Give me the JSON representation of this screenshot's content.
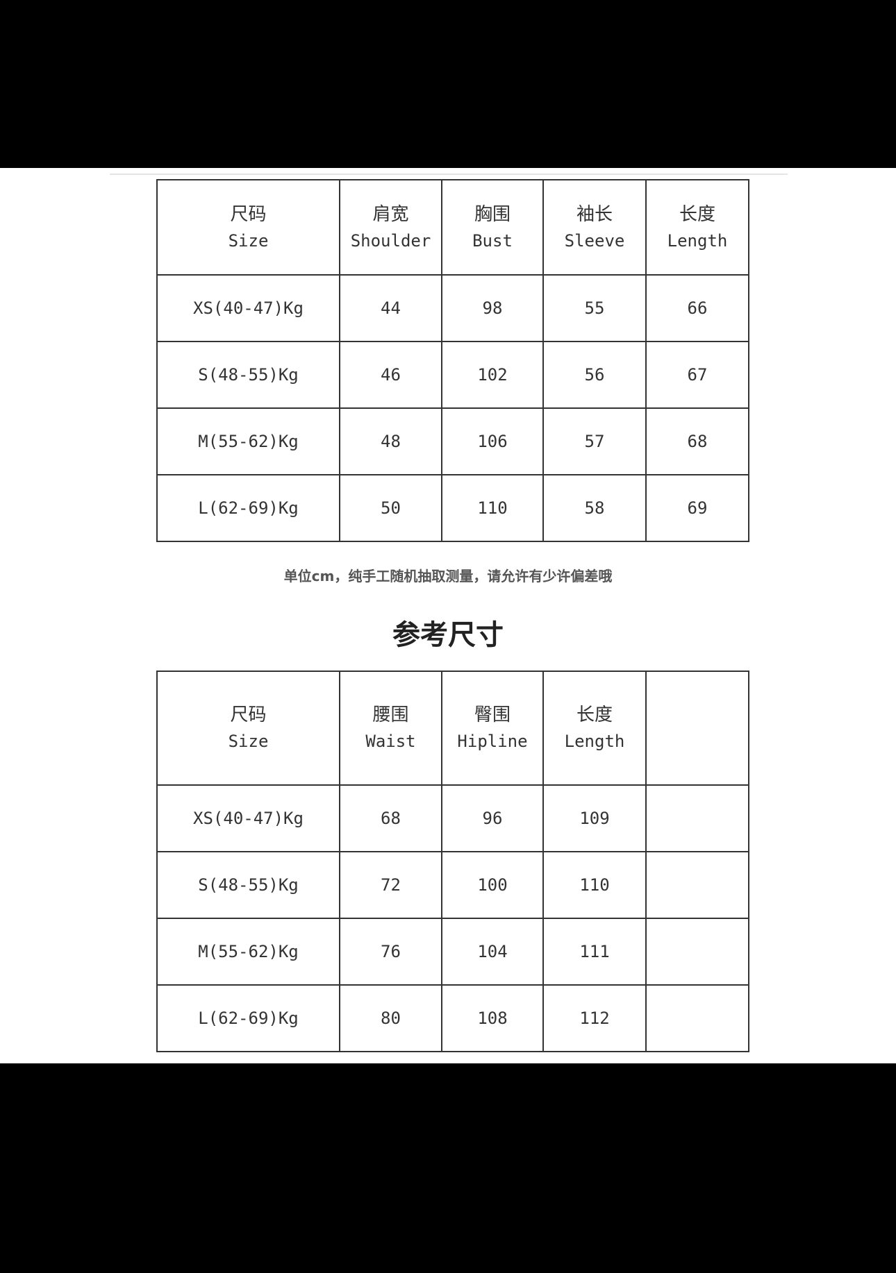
{
  "table1": {
    "headers": [
      {
        "zh": "尺码",
        "en": "Size"
      },
      {
        "zh": "肩宽",
        "en": "Shoulder"
      },
      {
        "zh": "胸围",
        "en": "Bust"
      },
      {
        "zh": "袖长",
        "en": "Sleeve"
      },
      {
        "zh": "长度",
        "en": "Length"
      }
    ],
    "rows": [
      [
        "XS(40-47)Kg",
        "44",
        "98",
        "55",
        "66"
      ],
      [
        "S(48-55)Kg",
        "46",
        "102",
        "56",
        "67"
      ],
      [
        "M(55-62)Kg",
        "48",
        "106",
        "57",
        "68"
      ],
      [
        "L(62-69)Kg",
        "50",
        "110",
        "58",
        "69"
      ]
    ]
  },
  "note": "单位cm，纯手工随机抽取测量，请允许有少许偏差哦",
  "title": "参考尺寸",
  "table2": {
    "headers": [
      {
        "zh": "尺码",
        "en": "Size"
      },
      {
        "zh": "腰围",
        "en": "Waist"
      },
      {
        "zh": "臀围",
        "en": "Hipline"
      },
      {
        "zh": "长度",
        "en": "Length"
      },
      {
        "zh": "",
        "en": ""
      }
    ],
    "rows": [
      [
        "XS(40-47)Kg",
        "68",
        "96",
        "109",
        ""
      ],
      [
        "S(48-55)Kg",
        "72",
        "100",
        "110",
        ""
      ],
      [
        "M(55-62)Kg",
        "76",
        "104",
        "111",
        ""
      ],
      [
        "L(62-69)Kg",
        "80",
        "108",
        "112",
        ""
      ]
    ]
  }
}
